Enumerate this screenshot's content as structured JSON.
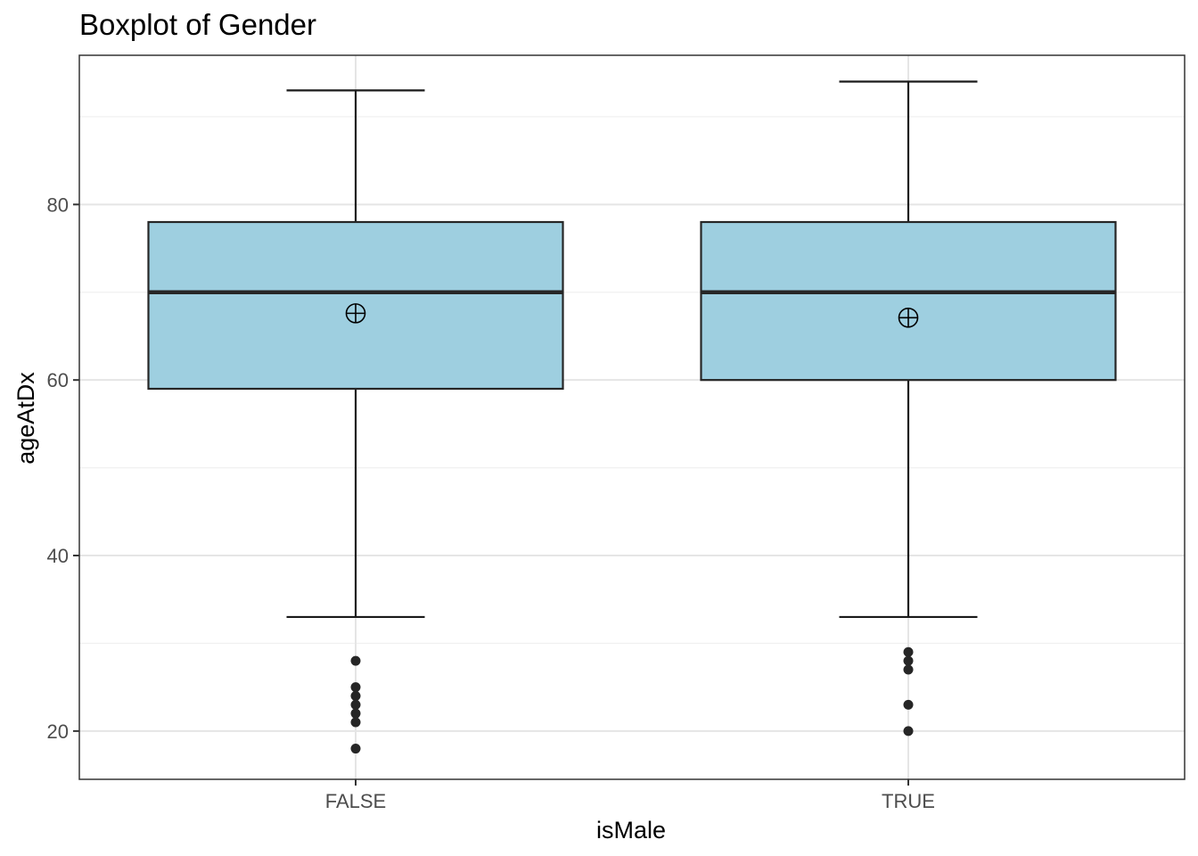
{
  "chart_data": {
    "type": "boxplot",
    "title": "Boxplot of Gender",
    "xlabel": "isMale",
    "ylabel": "ageAtDx",
    "categories": [
      "FALSE",
      "TRUE"
    ],
    "ylim": [
      14.5,
      97
    ],
    "y_ticks": [
      20,
      40,
      60,
      80
    ],
    "grid": true,
    "boxes": [
      {
        "category": "FALSE",
        "whisker_low": 33,
        "q1": 59,
        "median": 70,
        "q3": 78,
        "whisker_high": 93,
        "mean": 67.6,
        "outliers": [
          28,
          25,
          24,
          23,
          22,
          21,
          18
        ]
      },
      {
        "category": "TRUE",
        "whisker_low": 33,
        "q1": 60,
        "median": 70,
        "q3": 78,
        "whisker_high": 94,
        "mean": 67.1,
        "outliers": [
          29,
          28,
          27,
          23,
          20
        ]
      }
    ],
    "colors": {
      "box_fill": "#9ecfe0",
      "box_stroke": "#262626",
      "whisker": "#1a1a1a",
      "outlier": "#262626",
      "grid_major": "#e5e5e5",
      "grid_minor": "#f0f0f0",
      "panel_border": "#333333"
    }
  }
}
